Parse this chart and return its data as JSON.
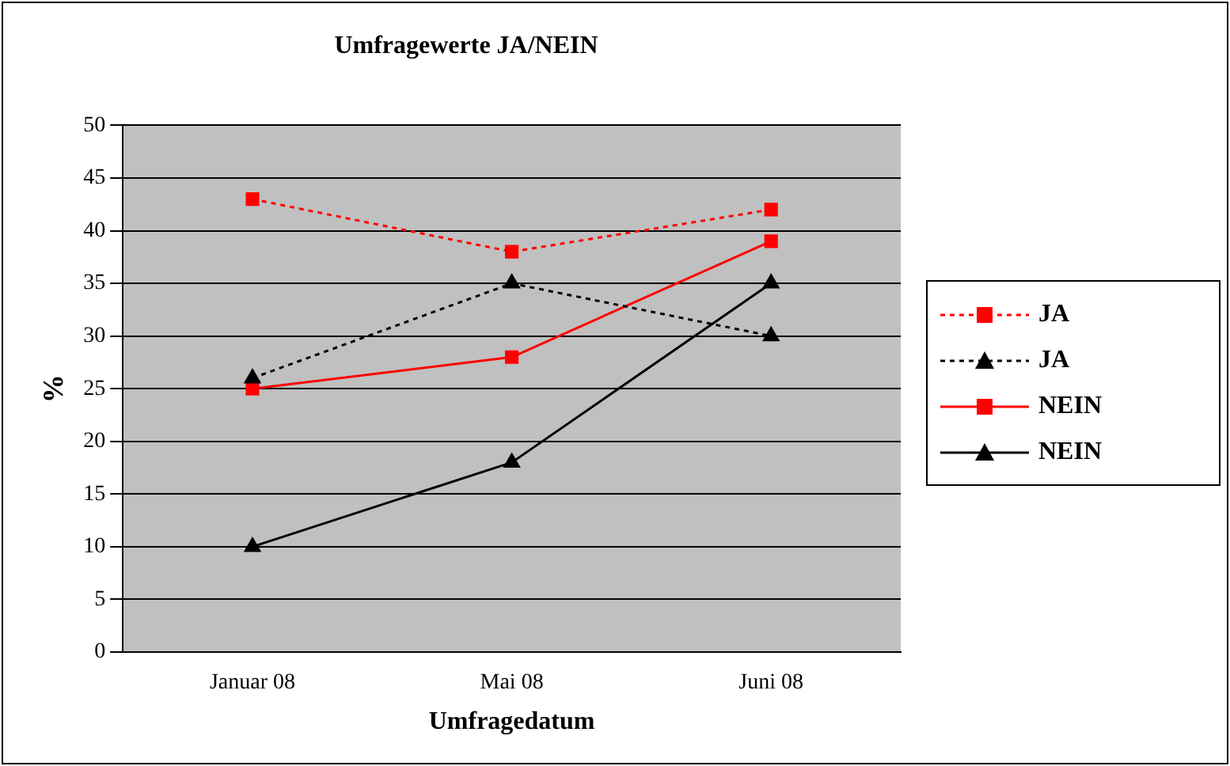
{
  "chart_data": {
    "type": "line",
    "title": "Umfragewerte JA/NEIN",
    "xlabel": "Umfragedatum",
    "ylabel": "%",
    "categories": [
      "Januar 08",
      "Mai 08",
      "Juni 08"
    ],
    "series": [
      {
        "name": "JA",
        "color": "#ff0000",
        "values": [
          43,
          38,
          42
        ],
        "marker": "square",
        "line_style": "dotted"
      },
      {
        "name": "JA",
        "color": "#000000",
        "values": [
          26,
          35,
          30
        ],
        "marker": "triangle",
        "line_style": "dotted"
      },
      {
        "name": "NEIN",
        "color": "#ff0000",
        "values": [
          25,
          28,
          39
        ],
        "marker": "square",
        "line_style": "solid"
      },
      {
        "name": "NEIN",
        "color": "#000000",
        "values": [
          10,
          18,
          35
        ],
        "marker": "triangle",
        "line_style": "solid"
      }
    ],
    "ylim": [
      0,
      50
    ],
    "yticks": [
      0,
      5,
      10,
      15,
      20,
      25,
      30,
      35,
      40,
      45,
      50
    ],
    "grid": "y",
    "legend": "right"
  }
}
